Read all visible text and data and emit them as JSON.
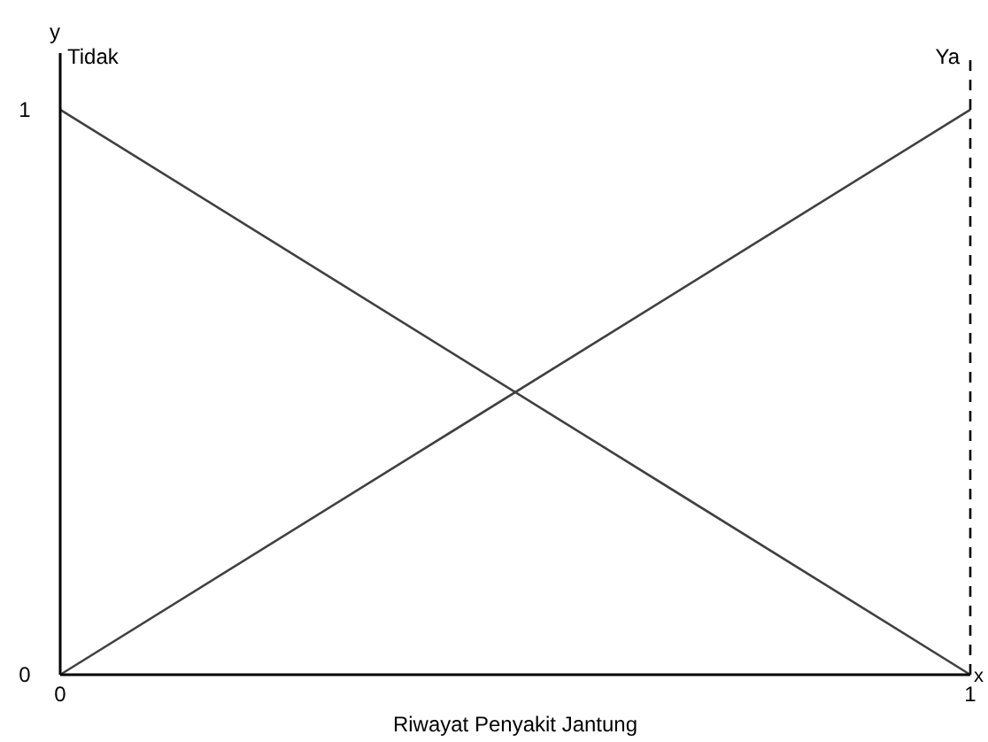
{
  "chart_data": {
    "type": "line",
    "xlabel": "Riwayat Penyakit Jantung",
    "ylabel": "y",
    "x": [
      0,
      1
    ],
    "series": [
      {
        "name": "Tidak",
        "color": "#404040",
        "values": [
          1,
          0
        ]
      },
      {
        "name": "Ya",
        "color": "#404040",
        "values": [
          0,
          1
        ]
      }
    ],
    "xlim": [
      0,
      1
    ],
    "ylim": [
      0,
      1.1
    ],
    "xticks": [
      0,
      1
    ],
    "yticks": [
      0,
      1
    ],
    "ref_lines": [
      {
        "axis": "x",
        "value": 1,
        "color": "#000000",
        "line_style": "dashed"
      }
    ],
    "annotations": [
      "x"
    ],
    "grid": false,
    "marker": "none",
    "line_style": "solid"
  }
}
